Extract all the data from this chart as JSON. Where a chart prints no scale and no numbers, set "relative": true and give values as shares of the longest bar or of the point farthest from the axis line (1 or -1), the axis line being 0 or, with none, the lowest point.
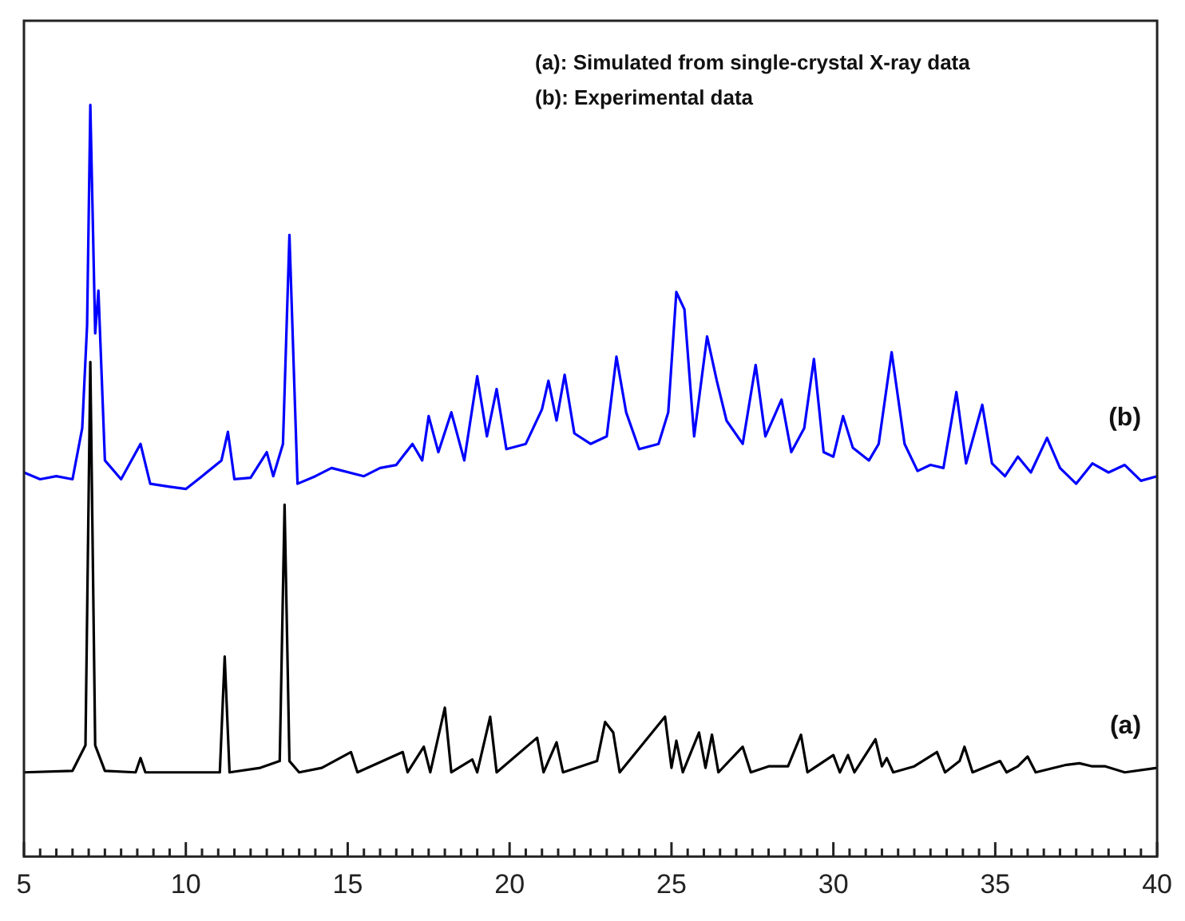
{
  "chart_data": {
    "type": "line",
    "relative": true,
    "legend": false,
    "grid": false,
    "marker": "none",
    "line_style": "solid",
    "xlim": [
      5,
      40
    ],
    "xticks": [
      5,
      {
        "value": 5.5,
        "label": null
      },
      {
        "value": 6,
        "label": null
      },
      {
        "value": 6.5,
        "label": null
      },
      {
        "value": 7,
        "label": null
      },
      {
        "value": 7.5,
        "label": null
      },
      {
        "value": 8,
        "label": null
      },
      {
        "value": 8.5,
        "label": null
      },
      {
        "value": 9,
        "label": null
      },
      {
        "value": 9.5,
        "label": null
      },
      10,
      {
        "value": 10.5,
        "label": null
      },
      {
        "value": 11,
        "label": null
      },
      {
        "value": 11.5,
        "label": null
      },
      {
        "value": 12,
        "label": null
      },
      {
        "value": 12.5,
        "label": null
      },
      {
        "value": 13,
        "label": null
      },
      {
        "value": 13.5,
        "label": null
      },
      {
        "value": 14,
        "label": null
      },
      {
        "value": 14.5,
        "label": null
      },
      15,
      {
        "value": 15.5,
        "label": null
      },
      {
        "value": 16,
        "label": null
      },
      {
        "value": 16.5,
        "label": null
      },
      {
        "value": 17,
        "label": null
      },
      {
        "value": 17.5,
        "label": null
      },
      {
        "value": 18,
        "label": null
      },
      {
        "value": 18.5,
        "label": null
      },
      {
        "value": 19,
        "label": null
      },
      {
        "value": 19.5,
        "label": null
      },
      20,
      {
        "value": 20.5,
        "label": null
      },
      {
        "value": 21,
        "label": null
      },
      {
        "value": 21.5,
        "label": null
      },
      {
        "value": 22,
        "label": null
      },
      {
        "value": 22.5,
        "label": null
      },
      {
        "value": 23,
        "label": null
      },
      {
        "value": 23.5,
        "label": null
      },
      {
        "value": 24,
        "label": null
      },
      {
        "value": 24.5,
        "label": null
      },
      25,
      {
        "value": 25.5,
        "label": null
      },
      {
        "value": 26,
        "label": null
      },
      {
        "value": 26.5,
        "label": null
      },
      {
        "value": 27,
        "label": null
      },
      {
        "value": 27.5,
        "label": null
      },
      {
        "value": 28,
        "label": null
      },
      {
        "value": 28.5,
        "label": null
      },
      {
        "value": 29,
        "label": null
      },
      {
        "value": 29.5,
        "label": null
      },
      30,
      {
        "value": 30.5,
        "label": null
      },
      {
        "value": 31,
        "label": null
      },
      {
        "value": 31.5,
        "label": null
      },
      {
        "value": 32,
        "label": null
      },
      {
        "value": 32.5,
        "label": null
      },
      {
        "value": 33,
        "label": null
      },
      {
        "value": 33.5,
        "label": null
      },
      {
        "value": 34,
        "label": null
      },
      {
        "value": 34.5,
        "label": null
      },
      35,
      {
        "value": 35.5,
        "label": null
      },
      {
        "value": 36,
        "label": null
      },
      {
        "value": 36.5,
        "label": null
      },
      {
        "value": 37,
        "label": null
      },
      {
        "value": 37.5,
        "label": null
      },
      {
        "value": 38,
        "label": null
      },
      {
        "value": 38.5,
        "label": null
      },
      {
        "value": 39,
        "label": null
      },
      {
        "value": 39.5,
        "label": null
      },
      40
    ],
    "annotations": [
      "(a): Simulated from single-crystal X-ray data",
      "(b): Experimental data"
    ],
    "series": [
      {
        "name": "(a)",
        "color": "#000000",
        "x": [
          5,
          6.5,
          6.9,
          7.05,
          7.2,
          7.5,
          8.45,
          8.6,
          8.75,
          11.05,
          11.2,
          11.35,
          12.3,
          12.9,
          13.05,
          13.2,
          13.5,
          14.2,
          15.1,
          15.3,
          16.7,
          16.85,
          17.35,
          17.55,
          18.0,
          18.2,
          18.85,
          19.0,
          19.4,
          19.6,
          20.85,
          21.05,
          21.45,
          21.65,
          22.7,
          22.95,
          23.2,
          23.4,
          24.8,
          25.0,
          25.15,
          25.35,
          25.85,
          26.05,
          26.25,
          26.45,
          27.2,
          27.45,
          28.0,
          28.6,
          29.0,
          29.2,
          30.0,
          30.2,
          30.45,
          30.65,
          31.3,
          31.5,
          31.65,
          31.85,
          32.5,
          33.2,
          33.45,
          33.9,
          34.05,
          34.3,
          35.15,
          35.35,
          35.7,
          36.0,
          36.25,
          37.2,
          37.6,
          38.0,
          38.4,
          39.0,
          40
        ],
        "values": [
          0.112,
          0.114,
          0.148,
          0.658,
          0.148,
          0.114,
          0.112,
          0.131,
          0.112,
          0.112,
          0.266,
          0.112,
          0.118,
          0.127,
          0.468,
          0.127,
          0.112,
          0.118,
          0.139,
          0.112,
          0.139,
          0.112,
          0.146,
          0.112,
          0.198,
          0.112,
          0.129,
          0.112,
          0.186,
          0.112,
          0.158,
          0.112,
          0.152,
          0.112,
          0.127,
          0.179,
          0.165,
          0.112,
          0.186,
          0.118,
          0.154,
          0.112,
          0.165,
          0.118,
          0.162,
          0.112,
          0.146,
          0.112,
          0.12,
          0.12,
          0.162,
          0.112,
          0.135,
          0.112,
          0.135,
          0.112,
          0.156,
          0.12,
          0.131,
          0.112,
          0.12,
          0.139,
          0.112,
          0.127,
          0.146,
          0.112,
          0.127,
          0.112,
          0.12,
          0.133,
          0.112,
          0.122,
          0.124,
          0.12,
          0.12,
          0.112,
          0.118
        ]
      },
      {
        "name": "(b)",
        "color": "#0000ff",
        "x": [
          5,
          5.5,
          6.0,
          6.5,
          6.8,
          6.95,
          7.05,
          7.2,
          7.3,
          7.5,
          8.0,
          8.6,
          8.9,
          9.5,
          10.0,
          10.5,
          11.1,
          11.3,
          11.5,
          12.0,
          12.5,
          12.7,
          13.0,
          13.2,
          13.45,
          14.0,
          14.5,
          15.5,
          16.0,
          16.5,
          17.0,
          17.3,
          17.5,
          17.8,
          18.2,
          18.6,
          19.0,
          19.3,
          19.6,
          19.9,
          20.5,
          21.0,
          21.2,
          21.45,
          21.7,
          22.0,
          22.5,
          23.0,
          23.3,
          23.6,
          24.0,
          24.6,
          24.9,
          25.15,
          25.4,
          25.7,
          26.1,
          26.4,
          26.7,
          27.2,
          27.6,
          27.9,
          28.4,
          28.7,
          29.1,
          29.4,
          29.7,
          30.0,
          30.3,
          30.6,
          31.1,
          31.4,
          31.8,
          32.2,
          32.6,
          33.0,
          33.4,
          33.8,
          34.1,
          34.6,
          34.9,
          35.3,
          35.7,
          36.1,
          36.6,
          37.0,
          37.5,
          38.0,
          38.5,
          39.0,
          39.5,
          40
        ],
        "values": [
          0.511,
          0.502,
          0.506,
          0.502,
          0.57,
          0.707,
          1.0,
          0.696,
          0.753,
          0.527,
          0.502,
          0.549,
          0.496,
          0.492,
          0.489,
          0.506,
          0.527,
          0.565,
          0.502,
          0.504,
          0.538,
          0.506,
          0.549,
          0.827,
          0.496,
          0.506,
          0.517,
          0.506,
          0.517,
          0.521,
          0.549,
          0.527,
          0.586,
          0.538,
          0.591,
          0.527,
          0.639,
          0.559,
          0.622,
          0.542,
          0.549,
          0.595,
          0.633,
          0.58,
          0.641,
          0.563,
          0.549,
          0.559,
          0.665,
          0.591,
          0.542,
          0.549,
          0.591,
          0.751,
          0.728,
          0.559,
          0.692,
          0.633,
          0.58,
          0.549,
          0.654,
          0.559,
          0.608,
          0.538,
          0.57,
          0.662,
          0.538,
          0.532,
          0.586,
          0.544,
          0.527,
          0.549,
          0.671,
          0.549,
          0.513,
          0.521,
          0.517,
          0.618,
          0.523,
          0.601,
          0.523,
          0.506,
          0.532,
          0.511,
          0.557,
          0.517,
          0.496,
          0.523,
          0.511,
          0.521,
          0.5,
          0.506
        ]
      }
    ]
  }
}
